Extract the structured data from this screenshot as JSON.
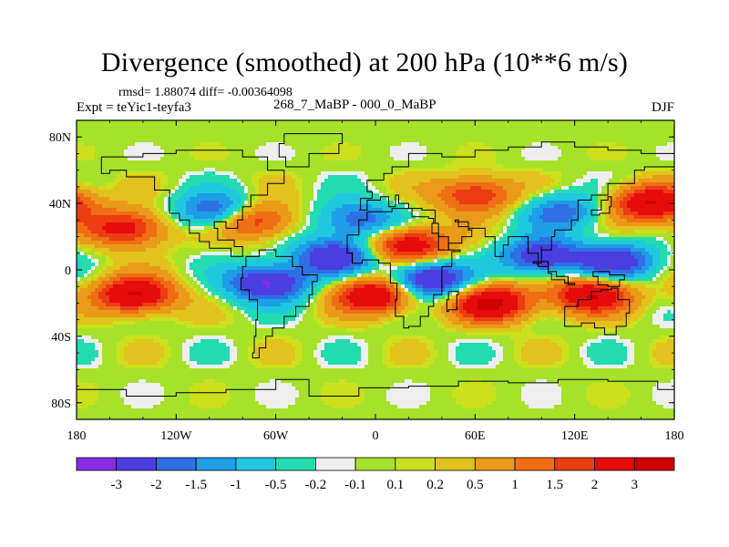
{
  "title": "Divergence (smoothed) at 200 hPa (10**6 m/s)",
  "stats": "rmsd= 1.88074 diff= -0.00364098",
  "experiment": "Expt = teYic1-teyfa3",
  "period": "268_7_MaBP - 000_0_MaBP",
  "season": "DJF",
  "map": {
    "lat_labels": [
      "80N",
      "40N",
      "0",
      "40S",
      "80S"
    ],
    "lat_values": [
      80,
      40,
      0,
      -40,
      -80
    ],
    "lon_labels": [
      "180",
      "120W",
      "60W",
      "0",
      "60E",
      "120E",
      "180"
    ],
    "lon_values": [
      -180,
      -120,
      -60,
      0,
      60,
      120,
      180
    ]
  },
  "colorbar": {
    "levels": [
      "-3",
      "-2",
      "-1.5",
      "-1",
      "-0.5",
      "-0.2",
      "-0.1",
      "0.1",
      "0.2",
      "0.5",
      "1",
      "1.5",
      "2",
      "3"
    ],
    "colors": [
      "#8a2be2",
      "#4a3ee0",
      "#2f6fe6",
      "#1e9ee6",
      "#20c8de",
      "#22dcb0",
      "#eeeeee",
      "#a6e22a",
      "#cde01e",
      "#e2c21c",
      "#e99a18",
      "#ef6e14",
      "#ec3c12",
      "#e60c0c",
      "#d00000"
    ]
  },
  "chart_data": {
    "type": "heatmap",
    "title": "Divergence (smoothed) at 200 hPa (10**6 m/s)",
    "x_range": [
      -180,
      180
    ],
    "y_range": [
      -90,
      90
    ],
    "units": "10**6 m/s",
    "xlabel": "",
    "ylabel": "",
    "features": [
      {
        "lon": -95,
        "lat": 35,
        "value": -2.5
      },
      {
        "lon": -65,
        "lat": -8,
        "value": -3.2
      },
      {
        "lon": -25,
        "lat": 8,
        "value": -2.8
      },
      {
        "lon": 32,
        "lat": -6,
        "value": -3.3
      },
      {
        "lon": 100,
        "lat": 8,
        "value": -2.8
      },
      {
        "lon": 145,
        "lat": 5,
        "value": -2.6
      },
      {
        "lon": 112,
        "lat": 35,
        "value": -1.8
      },
      {
        "lon": -10,
        "lat": 30,
        "value": -2.0
      },
      {
        "lon": -150,
        "lat": 25,
        "value": 2.5
      },
      {
        "lon": -145,
        "lat": -15,
        "value": 3.2
      },
      {
        "lon": 0,
        "lat": -15,
        "value": 3.2
      },
      {
        "lon": 70,
        "lat": -20,
        "value": 3.3
      },
      {
        "lon": 130,
        "lat": -15,
        "value": 3.0
      },
      {
        "lon": 165,
        "lat": 40,
        "value": 3.0
      },
      {
        "lon": -75,
        "lat": 30,
        "value": 2.5
      },
      {
        "lon": 20,
        "lat": 15,
        "value": 2.8
      },
      {
        "lon": 60,
        "lat": 45,
        "value": 2.2
      }
    ]
  }
}
